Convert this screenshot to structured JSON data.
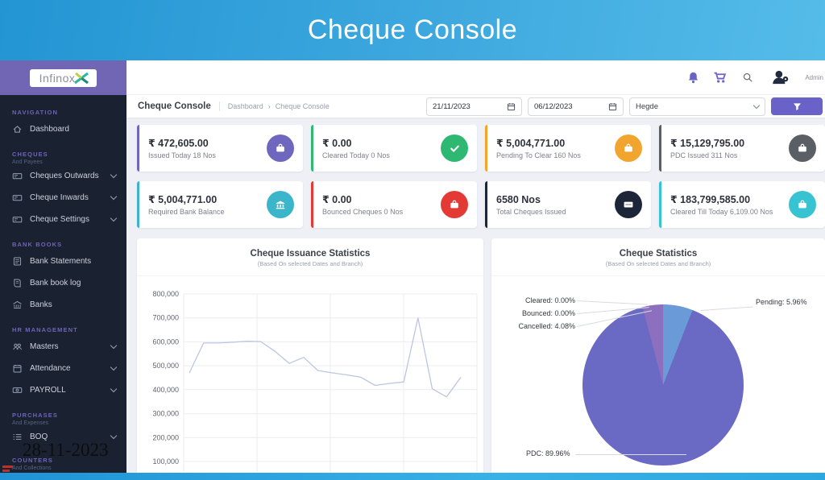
{
  "banner": {
    "title": "Cheque Console"
  },
  "topbar": {
    "user_label": "Admin"
  },
  "breadcrumb": {
    "title": "Cheque Console",
    "separator": "›",
    "items": [
      "Dashboard",
      "Cheque Console"
    ]
  },
  "filters": {
    "date_from": "21/11/2023",
    "date_to": "06/12/2023",
    "branch": "Hegde"
  },
  "sidebar": {
    "logo_text": "Infinox",
    "groups": [
      {
        "label": "NAVIGATION",
        "sublabel": "",
        "items": [
          {
            "label": "Dashboard",
            "expandable": false
          }
        ]
      },
      {
        "label": "CHEQUES",
        "sublabel": "And Payees",
        "items": [
          {
            "label": "Cheques Outwards",
            "expandable": true
          },
          {
            "label": "Cheque Inwards",
            "expandable": true
          },
          {
            "label": "Cheque Settings",
            "expandable": true
          }
        ]
      },
      {
        "label": "BANK BOOKS",
        "sublabel": "",
        "items": [
          {
            "label": "Bank Statements",
            "expandable": false
          },
          {
            "label": "Bank book log",
            "expandable": false
          },
          {
            "label": "Banks",
            "expandable": false
          }
        ]
      },
      {
        "label": "HR MANAGEMENT",
        "sublabel": "",
        "items": [
          {
            "label": "Masters",
            "expandable": true
          },
          {
            "label": "Attendance",
            "expandable": true
          },
          {
            "label": "PAYROLL",
            "expandable": true
          }
        ]
      },
      {
        "label": "PURCHASES",
        "sublabel": "And Expenses",
        "items": [
          {
            "label": "BOQ",
            "expandable": true
          }
        ]
      },
      {
        "label": "COUNTERS",
        "sublabel": "And Collections",
        "items": []
      }
    ]
  },
  "cards": [
    {
      "value": "₹ 472,605.00",
      "label": "Issued Today 18 Nos",
      "accent": "#6f66be",
      "icon": "briefcase-icon"
    },
    {
      "value": "₹ 0.00",
      "label": "Cleared Today 0 Nos",
      "accent": "#2eb872",
      "icon": "check-icon"
    },
    {
      "value": "₹ 5,004,771.00",
      "label": "Pending To Clear 160 Nos",
      "accent": "#f2a52e",
      "icon": "briefcase-icon"
    },
    {
      "value": "₹ 15,129,795.00",
      "label": "PDC Issued 311 Nos",
      "accent": "#5a5f66",
      "icon": "briefcase-icon"
    },
    {
      "value": "₹ 5,004,771.00",
      "label": "Required Bank Balance",
      "accent": "#3bb5c9",
      "icon": "bank-icon"
    },
    {
      "value": "₹ 0.00",
      "label": "Bounced Cheques 0 Nos",
      "accent": "#e33a35",
      "icon": "briefcase-icon"
    },
    {
      "value": "6580 Nos",
      "label": "Total Cheques Issued",
      "accent": "#1d2638",
      "icon": "cheque-icon"
    },
    {
      "value": "₹ 183,799,585.00",
      "label": "Cleared Till Today 6,109.00 Nos",
      "accent": "#38c3d2",
      "icon": "briefcase-icon"
    }
  ],
  "chart_data": [
    {
      "type": "line",
      "title": "Cheque Issuance Statistics",
      "subtitle": "(Based On selected Dates and Branch)",
      "x": [
        1,
        2,
        3,
        4,
        5,
        6,
        7,
        8,
        9,
        10,
        11,
        12,
        13,
        14,
        15,
        16,
        17,
        18,
        19,
        20
      ],
      "x_labels_visible": false,
      "values": [
        470000,
        595000,
        595000,
        598000,
        602000,
        601000,
        560000,
        510000,
        535000,
        480000,
        470000,
        462000,
        452000,
        418000,
        426000,
        432000,
        700000,
        404000,
        370000,
        452000
      ],
      "ylim": [
        100000,
        800000
      ],
      "yticks": [
        "800,000",
        "700,000",
        "600,000",
        "500,000",
        "400,000",
        "300,000",
        "200,000",
        "100,000"
      ],
      "line_color": "#bcc5e4",
      "grid": true,
      "legend": "none"
    },
    {
      "type": "pie",
      "title": "Cheque Statistics",
      "subtitle": "(Based On selected Dates and Branch)",
      "slices": [
        {
          "label": "Cleared",
          "pct": 0.0,
          "color": "#6a6ac4"
        },
        {
          "label": "Bounced",
          "pct": 0.0,
          "color": "#6a6ac4"
        },
        {
          "label": "Cancelled",
          "pct": 4.08,
          "color": "#8d6fc0"
        },
        {
          "label": "Pending",
          "pct": 5.96,
          "color": "#6a9bd8"
        },
        {
          "label": "PDC",
          "pct": 89.96,
          "color": "#6a6ac4"
        }
      ],
      "draw_order": [
        3,
        4,
        2,
        1,
        0
      ],
      "annotations": [
        {
          "text": "Cleared: 0.00%"
        },
        {
          "text": "Bounced: 0.00%"
        },
        {
          "text": "Cancelled: 4.08%"
        },
        {
          "text": "Pending: 5.96%"
        },
        {
          "text": "PDC: 89.96%"
        }
      ],
      "legend": "callout-labels"
    }
  ],
  "overlay": {
    "date_stamp": "28-11-2023"
  }
}
